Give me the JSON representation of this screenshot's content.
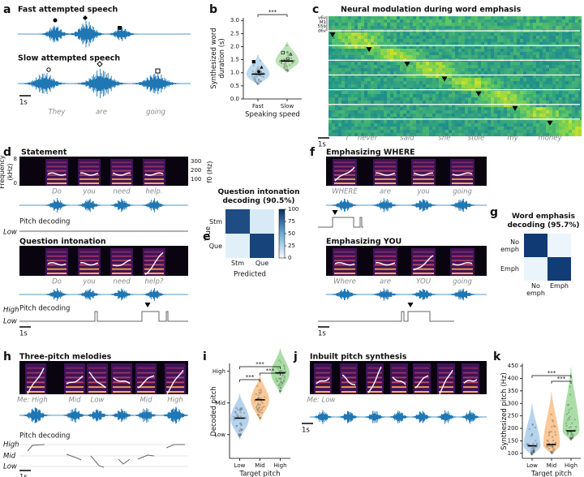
{
  "panel_labels": [
    "a",
    "b",
    "c",
    "d",
    "e",
    "f",
    "g",
    "h",
    "i",
    "j",
    "k"
  ],
  "panel_a": {
    "fast": "Fast attempted speech",
    "slow": "Slow attempted speech",
    "scale": "1s",
    "words": [
      "They",
      "are",
      "going"
    ]
  },
  "panel_c": {
    "title": "Neural modulation during word emphasis",
    "areas": [
      "v6v",
      "M1",
      "55b",
      "d6v"
    ],
    "scale": "1s",
    "words": [
      "I",
      "never",
      "said",
      "she",
      "stole",
      "my",
      "money"
    ]
  },
  "panel_d": {
    "statement": "Statement",
    "question": "Question intonation",
    "statement_words": [
      "Do",
      "you",
      "need",
      "help."
    ],
    "question_words": [
      "Do",
      "you",
      "need",
      "help?"
    ],
    "freq_label": "Frequency (kHz)",
    "freq_ticks": [
      0,
      8
    ],
    "f0_label": "f0 (Hz)",
    "f0_ticks": [
      100,
      200,
      300
    ],
    "pitch_label": "Pitch decoding",
    "high": "High",
    "low": "Low",
    "scale": "1s"
  },
  "panel_f": {
    "where": "Emphasizing WHERE",
    "you": "Emphasizing YOU",
    "where_words": [
      "WHERE",
      "are",
      "you",
      "going"
    ],
    "you_words": [
      "Where",
      "are",
      "YOU",
      "going"
    ],
    "scale": "1s"
  },
  "panel_h": {
    "title": "Three-pitch melodies",
    "notes": [
      "Me: High",
      "Mid",
      "Low",
      "Mid",
      "High"
    ],
    "pitch_label": "Pitch decoding",
    "levels": [
      "High",
      "Mid",
      "Low"
    ],
    "scale": "1s"
  },
  "panel_j": {
    "title": "Inbuilt pitch synthesis",
    "notes": [
      "Me: Low"
    ],
    "scale": "1s"
  },
  "chart_data": [
    {
      "type": "violin",
      "ylabel": "Synthesized word duration (s)",
      "xlabel": "Speaking speed",
      "categories": [
        "Fast",
        "Slow"
      ],
      "values": [
        0.95,
        1.45
      ],
      "colors": [
        "#a9cfe8",
        "#a8dba0"
      ],
      "ylim": [
        0,
        3.1
      ],
      "yticks": [
        {
          "value": 0,
          "label": "0.0"
        },
        0.5,
        {
          "value": 1,
          "label": "1.0"
        },
        1.5,
        {
          "value": 2,
          "label": "2.0"
        },
        2.5,
        {
          "value": 3,
          "label": "3.0"
        }
      ],
      "annotations": [
        "***"
      ]
    },
    {
      "type": "heatmap",
      "title": "Question intonation decoding (90.5%)",
      "ylabel": "True",
      "xlabel": "Predicted",
      "categories": [
        "Stm",
        "Que"
      ],
      "values": [
        [
          89,
          11
        ],
        [
          8,
          92
        ]
      ],
      "clim": [
        0,
        100
      ],
      "cticks": [
        0,
        25,
        50,
        75,
        100
      ]
    },
    {
      "type": "heatmap",
      "title": "Word emphasis decoding (95.7%)",
      "categories": [
        "No emph",
        "Emph"
      ],
      "values": [
        [
          96,
          4
        ],
        [
          4.6,
          95.4
        ]
      ],
      "clim": [
        0,
        100
      ]
    },
    {
      "type": "violin",
      "ylabel": "Decoded pitch",
      "xlabel": "Target pitch",
      "categories": [
        "Low",
        "Mid",
        "High"
      ],
      "values": [
        0.52,
        1.1,
        1.95
      ],
      "colors": [
        "#9ec5e8",
        "#f9b775",
        "#8fd48a"
      ],
      "ylim": [
        -0.75,
        2.25
      ],
      "yticks": [
        {
          "value": 0,
          "label": "Low"
        },
        {
          "value": 1,
          "label": "Mid"
        },
        {
          "value": 2,
          "label": "High"
        }
      ],
      "annotations": [
        "***",
        "***",
        "***"
      ]
    },
    {
      "type": "violin",
      "ylabel": "Synthesized pitch (Hz)",
      "xlabel": "Target pitch",
      "categories": [
        "Low",
        "Mid",
        "High"
      ],
      "values": [
        130,
        135,
        190
      ],
      "colors": [
        "#9ec5e8",
        "#f9b775",
        "#8fd48a"
      ],
      "ylim": [
        80,
        460
      ],
      "yticks": [
        100,
        150,
        200,
        250,
        300,
        350,
        400,
        450
      ],
      "annotations": [
        "***",
        "***"
      ]
    }
  ]
}
